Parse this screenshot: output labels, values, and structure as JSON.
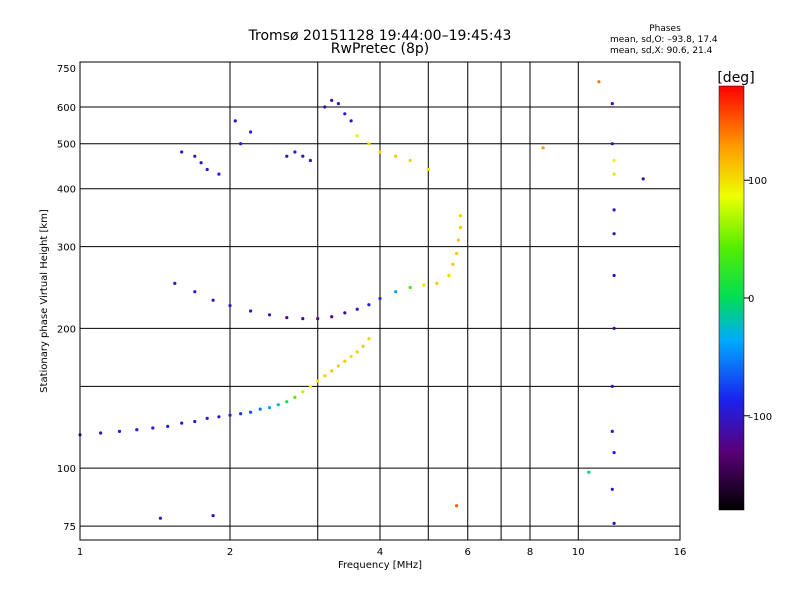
{
  "chart_data": {
    "type": "scatter",
    "title": "Tromsø 20151128 19:44:00–19:45:43",
    "subtitle": "RwPretec (8p)",
    "xlabel": "Frequency [MHz]",
    "ylabel": "Stationary phase Virtual Height [km]",
    "x_scale": "log",
    "y_scale": "log",
    "xlim": [
      1,
      16
    ],
    "ylim": [
      70,
      750
    ],
    "grid": true,
    "x_ticks": [
      {
        "value": 1,
        "label": "1"
      },
      {
        "value": 2,
        "label": "2"
      },
      {
        "value": 4,
        "label": "4"
      },
      {
        "value": 6,
        "label": "6"
      },
      {
        "value": 8,
        "label": "8"
      },
      {
        "value": 10,
        "label": "10"
      },
      {
        "value": 16,
        "label": "16"
      }
    ],
    "x_grid_extra": [
      3,
      5,
      7
    ],
    "y_ticks": [
      {
        "value": 75,
        "label": "75"
      },
      {
        "value": 100,
        "label": "100"
      },
      {
        "value": 200,
        "label": "200"
      },
      {
        "value": 300,
        "label": "300"
      },
      {
        "value": 400,
        "label": "400"
      },
      {
        "value": 500,
        "label": "500"
      },
      {
        "value": 600,
        "label": "600"
      },
      {
        "value": 750,
        "label": "750"
      }
    ],
    "y_grid_extra": [
      150
    ],
    "stats": {
      "heading": "Phases",
      "line_o": "mean, sd,O: –93.8, 17.4",
      "line_x": "mean, sd,X:  90.6, 21.4"
    },
    "colorbar": {
      "label": "[deg]",
      "range": [
        -180,
        180
      ],
      "ticks": [
        {
          "value": 100,
          "label": "100"
        },
        {
          "value": 0,
          "label": "0"
        },
        {
          "value": -100,
          "label": "–100"
        }
      ]
    },
    "traces": [
      {
        "name": "",
        "points": [
          [
            1.0,
            118,
            -95
          ],
          [
            1.1,
            119,
            -100
          ],
          [
            1.2,
            120,
            -90
          ],
          [
            1.3,
            121,
            -95
          ],
          [
            1.4,
            122,
            -100
          ],
          [
            1.5,
            123,
            -92
          ],
          [
            1.6,
            125,
            -95
          ],
          [
            1.7,
            126,
            -100
          ],
          [
            1.8,
            128,
            -90
          ],
          [
            1.9,
            129,
            -95
          ],
          [
            2.0,
            130,
            -90
          ],
          [
            2.1,
            131,
            -80
          ],
          [
            2.2,
            132,
            -70
          ],
          [
            2.3,
            134,
            -55
          ],
          [
            2.4,
            135,
            -40
          ],
          [
            2.5,
            137,
            -20
          ],
          [
            2.6,
            139,
            10
          ],
          [
            2.7,
            142,
            40
          ],
          [
            2.8,
            146,
            70
          ],
          [
            2.9,
            150,
            90
          ],
          [
            3.0,
            154,
            100
          ],
          [
            3.1,
            158,
            105
          ],
          [
            3.2,
            162,
            110
          ],
          [
            3.3,
            166,
            105
          ],
          [
            3.4,
            170,
            110
          ],
          [
            3.5,
            174,
            100
          ],
          [
            3.6,
            178,
            108
          ],
          [
            3.7,
            183,
            110
          ],
          [
            3.8,
            190,
            105
          ]
        ]
      },
      {
        "name": "",
        "points": [
          [
            1.55,
            250,
            -100
          ],
          [
            1.7,
            240,
            -95
          ],
          [
            1.85,
            230,
            -95
          ],
          [
            2.0,
            224,
            -100
          ],
          [
            2.2,
            218,
            -105
          ],
          [
            2.4,
            214,
            -110
          ],
          [
            2.6,
            211,
            -120
          ],
          [
            2.8,
            210,
            -120
          ],
          [
            3.0,
            210,
            -125
          ],
          [
            3.2,
            212,
            -130
          ],
          [
            3.4,
            216,
            -115
          ],
          [
            3.6,
            220,
            -100
          ],
          [
            3.8,
            225,
            -90
          ],
          [
            4.0,
            232,
            -80
          ],
          [
            4.3,
            240,
            -40
          ],
          [
            4.6,
            245,
            40
          ],
          [
            4.9,
            248,
            100
          ],
          [
            5.2,
            250,
            110
          ],
          [
            5.5,
            260,
            105
          ],
          [
            5.6,
            275,
            110
          ],
          [
            5.7,
            290,
            108
          ],
          [
            5.75,
            310,
            112
          ],
          [
            5.8,
            330,
            110
          ],
          [
            5.8,
            350,
            105
          ]
        ]
      },
      {
        "name": "",
        "points": [
          [
            2.6,
            470,
            -100
          ],
          [
            2.7,
            480,
            -95
          ],
          [
            2.8,
            470,
            -105
          ],
          [
            2.9,
            460,
            -100
          ],
          [
            3.1,
            600,
            -110
          ],
          [
            3.2,
            620,
            -115
          ],
          [
            3.3,
            610,
            -105
          ],
          [
            3.4,
            580,
            -100
          ],
          [
            3.5,
            560,
            -110
          ],
          [
            3.6,
            520,
            80
          ],
          [
            3.8,
            500,
            100
          ],
          [
            4.0,
            480,
            105
          ],
          [
            4.3,
            470,
            110
          ],
          [
            4.6,
            460,
            105
          ],
          [
            5.0,
            440,
            100
          ]
        ]
      },
      {
        "name": "",
        "points": [
          [
            1.6,
            480,
            -95
          ],
          [
            1.7,
            470,
            -100
          ],
          [
            1.75,
            455,
            -100
          ],
          [
            1.8,
            440,
            -90
          ],
          [
            1.9,
            430,
            -95
          ],
          [
            2.05,
            560,
            -105
          ],
          [
            2.1,
            500,
            -100
          ],
          [
            2.2,
            530,
            -95
          ]
        ]
      },
      {
        "name": "",
        "points": [
          [
            11.0,
            680,
            140
          ],
          [
            11.7,
            610,
            -110
          ],
          [
            11.7,
            500,
            -100
          ],
          [
            11.8,
            460,
            90
          ],
          [
            11.8,
            430,
            95
          ],
          [
            11.8,
            360,
            -100
          ],
          [
            11.8,
            320,
            -110
          ],
          [
            11.8,
            260,
            -105
          ],
          [
            11.8,
            200,
            -110
          ],
          [
            11.7,
            150,
            -110
          ],
          [
            11.7,
            120,
            -100
          ],
          [
            11.8,
            108,
            -90
          ],
          [
            11.7,
            90,
            -105
          ],
          [
            11.8,
            76,
            -110
          ],
          [
            10.5,
            98,
            -10
          ],
          [
            8.5,
            490,
            130
          ],
          [
            13.5,
            420,
            -110
          ],
          [
            5.7,
            83,
            150
          ],
          [
            1.45,
            78,
            -100
          ],
          [
            1.85,
            79,
            -110
          ]
        ]
      }
    ]
  }
}
